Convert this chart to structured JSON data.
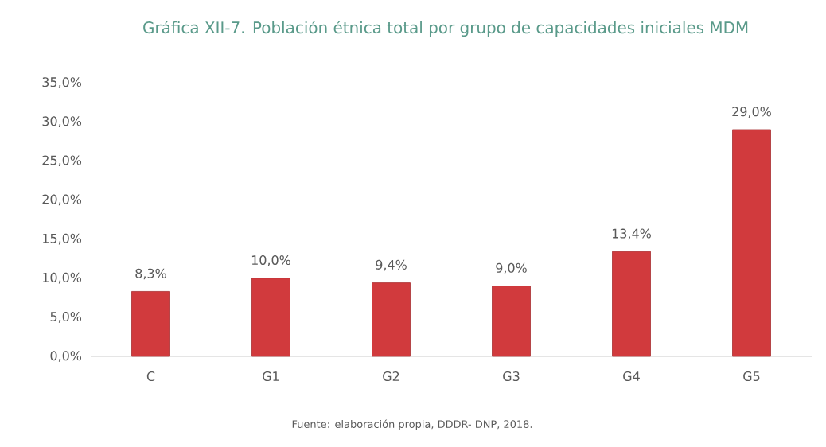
{
  "chart_data": {
    "type": "bar",
    "title": "Gráfica XII-7. Población étnica total por grupo de capacidades iniciales MDM",
    "categories": [
      "C",
      "G1",
      "G2",
      "G3",
      "G4",
      "G5"
    ],
    "values": [
      8.3,
      10.0,
      9.4,
      9.0,
      13.4,
      29.0
    ],
    "value_labels": [
      "8,3%",
      "10,0%",
      "9,4%",
      "9,0%",
      "13,4%",
      "29,0%"
    ],
    "color": "#d13a3d",
    "ylim": [
      0,
      35
    ],
    "yticks": [
      {
        "value": 0,
        "label": "0,0%"
      },
      {
        "value": 5,
        "label": "5,0%"
      },
      {
        "value": 10,
        "label": "10,0%"
      },
      {
        "value": 15,
        "label": "15,0%"
      },
      {
        "value": 20,
        "label": "20,0%"
      },
      {
        "value": 25,
        "label": "25,0%"
      },
      {
        "value": 30,
        "label": "30,0%"
      },
      {
        "value": 35,
        "label": "35,0%"
      }
    ],
    "grid": false,
    "annotations": [
      "Fuente: elaboración propia, DDDR- DNP, 2018."
    ]
  }
}
